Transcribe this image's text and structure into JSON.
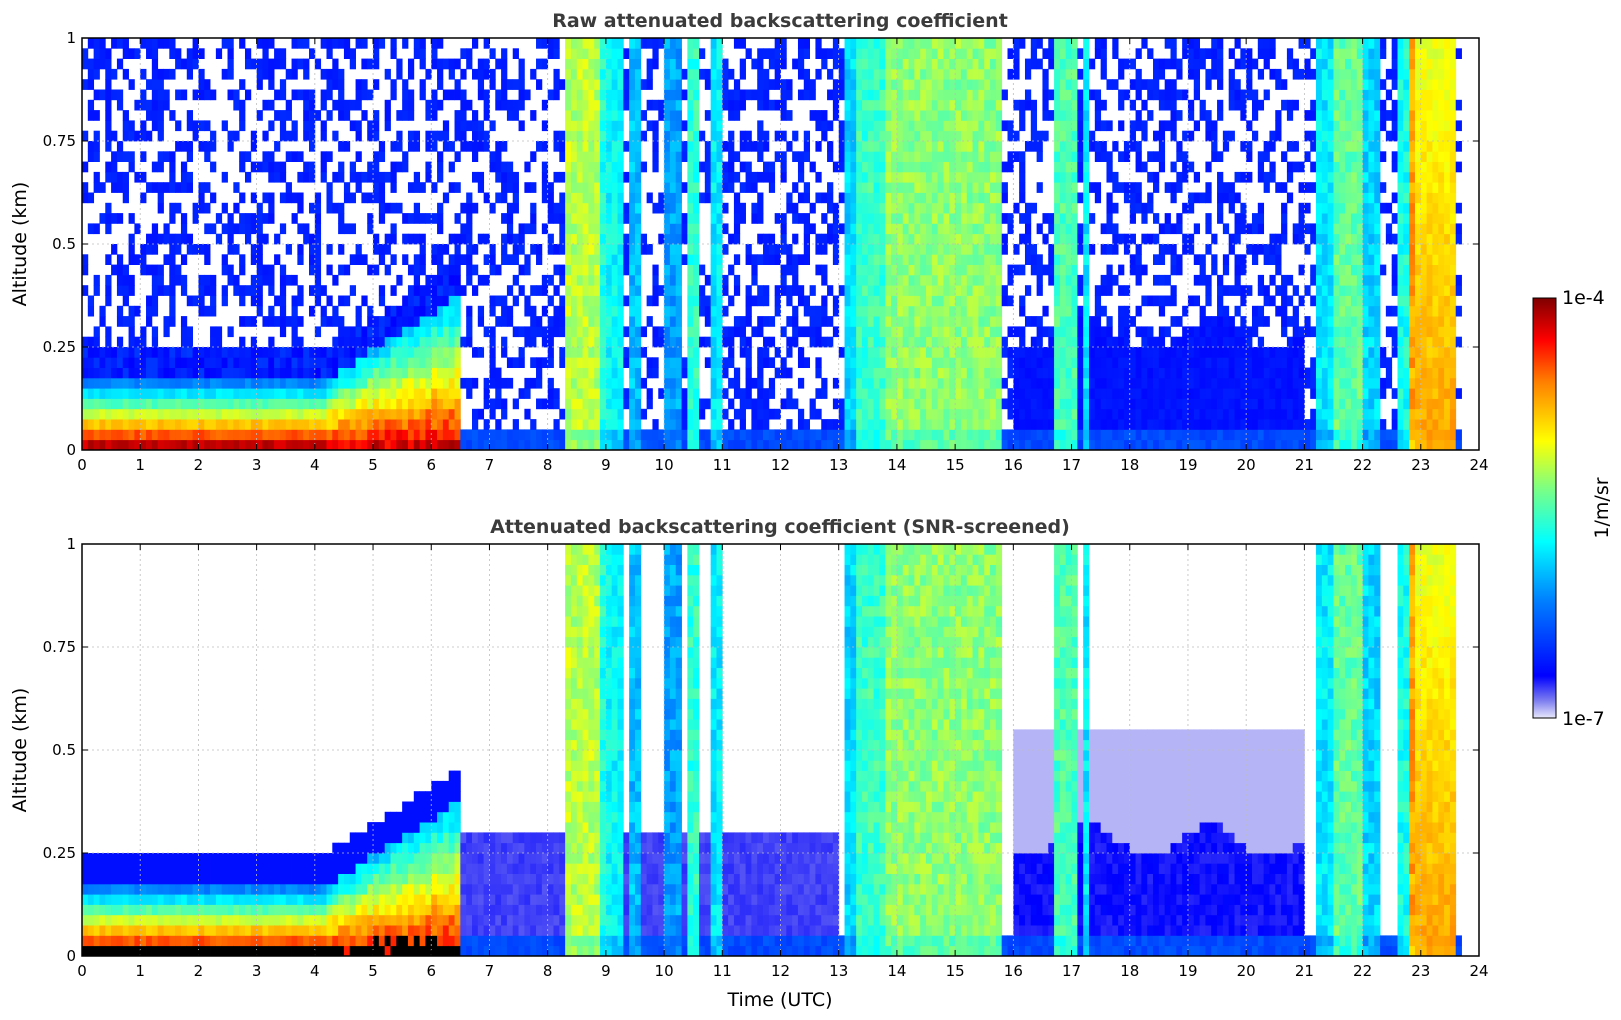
{
  "chart_data": [
    {
      "type": "heatmap",
      "title": "Raw attenuated backscattering coefficient",
      "xlabel": "",
      "ylabel": "Altitude (km)",
      "xlim": [
        0,
        24
      ],
      "ylim": [
        0,
        1
      ],
      "x_ticks": [
        "0",
        "1",
        "2",
        "3",
        "4",
        "5",
        "6",
        "7",
        "8",
        "9",
        "10",
        "11",
        "12",
        "13",
        "14",
        "15",
        "16",
        "17",
        "18",
        "19",
        "20",
        "21",
        "22",
        "23",
        "24"
      ],
      "y_ticks": [
        "0",
        "0.25",
        "0.5",
        "0.75",
        "1"
      ],
      "grid": true,
      "screened": false
    },
    {
      "type": "heatmap",
      "title": "Attenuated backscattering coefficient (SNR-screened)",
      "xlabel": "Time (UTC)",
      "ylabel": "Altitude (km)",
      "xlim": [
        0,
        24
      ],
      "ylim": [
        0,
        1
      ],
      "x_ticks": [
        "0",
        "1",
        "2",
        "3",
        "4",
        "5",
        "6",
        "7",
        "8",
        "9",
        "10",
        "11",
        "12",
        "13",
        "14",
        "15",
        "16",
        "17",
        "18",
        "19",
        "20",
        "21",
        "22",
        "23",
        "24"
      ],
      "y_ticks": [
        "0",
        "0.25",
        "0.5",
        "0.75",
        "1"
      ],
      "grid": true,
      "screened": true
    }
  ],
  "colorbar": {
    "label": "1/m/sr",
    "min_label": "1e-7",
    "max_label": "1e-4",
    "scale": "log",
    "colormap": "jet"
  }
}
